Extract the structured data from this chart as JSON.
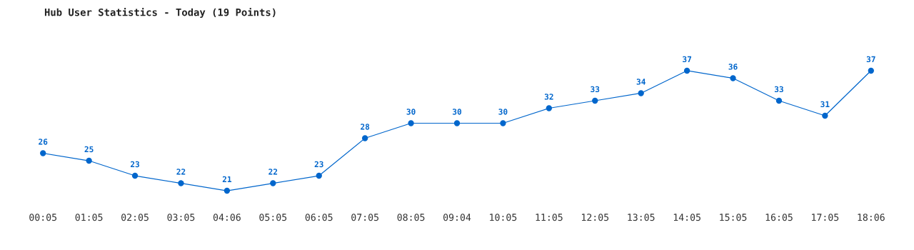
{
  "chart_data": {
    "type": "line",
    "title": "Hub User Statistics - Today (19 Points)",
    "categories": [
      "00:05",
      "01:05",
      "02:05",
      "03:05",
      "04:06",
      "05:05",
      "06:05",
      "07:05",
      "08:05",
      "09:04",
      "10:05",
      "11:05",
      "12:05",
      "13:05",
      "14:05",
      "15:05",
      "16:05",
      "17:05",
      "18:06"
    ],
    "values": [
      26,
      25,
      23,
      22,
      21,
      22,
      23,
      28,
      30,
      30,
      30,
      32,
      33,
      34,
      37,
      36,
      33,
      31,
      37
    ],
    "color": "#0066cc",
    "marker": "circle",
    "line_style": "solid",
    "data_labels": true,
    "grid": false,
    "legend": false,
    "tick_labels": "x"
  }
}
